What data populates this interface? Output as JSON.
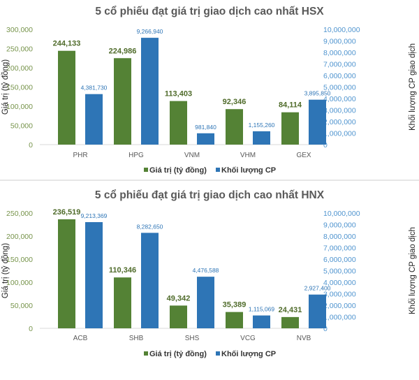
{
  "colors": {
    "value": "#548235",
    "volume": "#2E75B6",
    "left_tick": "#76934a",
    "right_tick": "#4f94cf"
  },
  "chart_data": [
    {
      "type": "bar",
      "title": "5 cổ phiếu đạt giá trị giao dịch cao nhất HSX",
      "categories": [
        "PHR",
        "HPG",
        "VNM",
        "VHM",
        "GEX"
      ],
      "ylabel": "Giá trị (tỷ đồng)",
      "y2label": "Khối lượng CP giao dịch",
      "ylim": [
        0,
        300000
      ],
      "y2lim": [
        0,
        10000000
      ],
      "yticks": [
        "0",
        "50,000",
        "100,000",
        "150,000",
        "200,000",
        "250,000",
        "300,000"
      ],
      "y2ticks": [
        "0",
        "1,000,000",
        "2,000,000",
        "3,000,000",
        "4,000,000",
        "5,000,000",
        "6,000,000",
        "7,000,000",
        "8,000,000",
        "9,000,000",
        "10,000,000"
      ],
      "legend_position": "bottom",
      "series": [
        {
          "name": "Giá trị (tỷ đồng)",
          "axis": "left",
          "values": [
            244133,
            224986,
            113403,
            92346,
            84114
          ],
          "labels": [
            "244,133",
            "224,986",
            "113,403",
            "92,346",
            "84,114"
          ]
        },
        {
          "name": "Khối lượng CP",
          "axis": "right",
          "values": [
            4381730,
            9266940,
            981840,
            1155260,
            3895850
          ],
          "labels": [
            "4,381,730",
            "9,266,940",
            "981,840",
            "1,155,260",
            "3,895,850"
          ]
        }
      ]
    },
    {
      "type": "bar",
      "title": "5 cổ phiếu đạt giá trị giao dịch cao nhất HNX",
      "categories": [
        "ACB",
        "SHB",
        "SHS",
        "VCG",
        "NVB"
      ],
      "ylabel": "Giá trị (tỷ đồng)",
      "y2label": "Khối lượng CP giao dịch",
      "ylim": [
        0,
        250000
      ],
      "y2lim": [
        0,
        10000000
      ],
      "yticks": [
        "0",
        "50,000",
        "100,000",
        "150,000",
        "200,000",
        "250,000"
      ],
      "y2ticks": [
        "0",
        "1,000,000",
        "2,000,000",
        "3,000,000",
        "4,000,000",
        "5,000,000",
        "6,000,000",
        "7,000,000",
        "8,000,000",
        "9,000,000",
        "10,000,000"
      ],
      "legend_position": "bottom",
      "series": [
        {
          "name": "Giá trị (tỷ đồng)",
          "axis": "left",
          "values": [
            236519,
            110346,
            49342,
            35389,
            24431
          ],
          "labels": [
            "236,519",
            "110,346",
            "49,342",
            "35,389",
            "24,431"
          ]
        },
        {
          "name": "Khối lượng CP",
          "axis": "right",
          "values": [
            9213369,
            8282650,
            4476588,
            1115069,
            2927400
          ],
          "labels": [
            "9,213,369",
            "8,282,650",
            "4,476,588",
            "1,115,069",
            "2,927,400"
          ]
        }
      ]
    }
  ]
}
